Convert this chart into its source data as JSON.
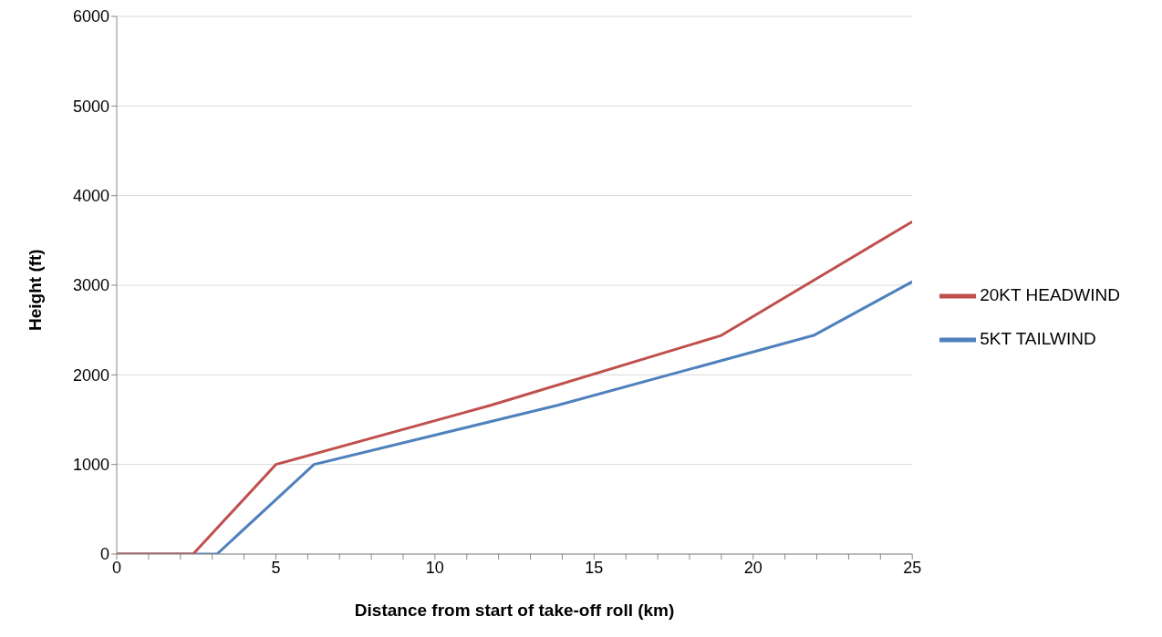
{
  "chart_data": {
    "type": "line",
    "xlabel": "Distance from start of take-off roll (km)",
    "ylabel": "Height (ft)",
    "series": [
      {
        "name": "5KT TAILWIND",
        "color": "#4f81bd",
        "x": [
          0,
          3.15,
          6.2,
          13.85,
          21.9,
          25
        ],
        "values": [
          0,
          0,
          1000,
          1660,
          2440,
          3040
        ]
      },
      {
        "name": "20KT HEADWIND",
        "color": "#c0504d",
        "x": [
          0,
          2.4,
          5,
          11.75,
          19,
          25
        ],
        "values": [
          0,
          0,
          1000,
          1660,
          2440,
          3710
        ]
      }
    ],
    "xlim": [
      0,
      25
    ],
    "xticks": [
      0,
      {
        "value": 1,
        "label": null
      },
      {
        "value": 2,
        "label": null
      },
      {
        "value": 3,
        "label": null
      },
      {
        "value": 4,
        "label": null
      },
      5,
      {
        "value": 6,
        "label": null
      },
      {
        "value": 7,
        "label": null
      },
      {
        "value": 8,
        "label": null
      },
      {
        "value": 9,
        "label": null
      },
      10,
      {
        "value": 11,
        "label": null
      },
      {
        "value": 12,
        "label": null
      },
      {
        "value": 13,
        "label": null
      },
      {
        "value": 14,
        "label": null
      },
      15,
      {
        "value": 16,
        "label": null
      },
      {
        "value": 17,
        "label": null
      },
      {
        "value": 18,
        "label": null
      },
      {
        "value": 19,
        "label": null
      },
      20,
      {
        "value": 21,
        "label": null
      },
      {
        "value": 22,
        "label": null
      },
      {
        "value": 23,
        "label": null
      },
      {
        "value": 24,
        "label": null
      },
      25
    ],
    "ylim": [
      0,
      6000
    ],
    "yticks": [
      0,
      1000,
      2000,
      3000,
      4000,
      5000,
      6000
    ],
    "grid": "y",
    "legend": "right",
    "marker": "none",
    "line_style": "solid"
  }
}
